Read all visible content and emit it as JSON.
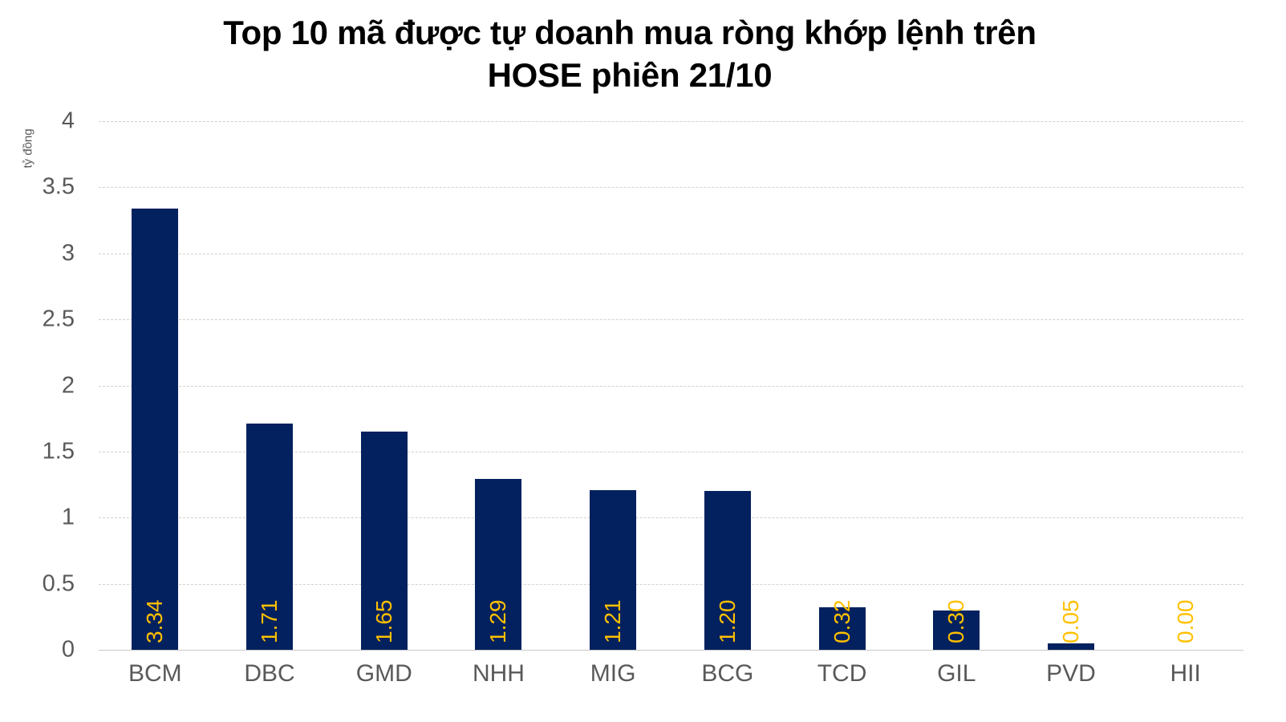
{
  "chart_data": {
    "type": "bar",
    "title": "Top 10 mã được tự doanh mua ròng khớp lệnh trên HOSE phiên 21/10",
    "title_lines": [
      "Top 10 mã được tự doanh mua ròng khớp lệnh trên",
      "HOSE phiên 21/10"
    ],
    "xlabel": "",
    "ylabel": "tỷ đồng",
    "ylim": [
      0,
      4
    ],
    "yticks": [
      "0",
      "0.5",
      "1",
      "1.5",
      "2",
      "2.5",
      "3",
      "3.5",
      "4"
    ],
    "grid": true,
    "legend": null,
    "categories": [
      "BCM",
      "DBC",
      "GMD",
      "NHH",
      "MIG",
      "BCG",
      "TCD",
      "GIL",
      "PVD",
      "HII"
    ],
    "values": [
      3.34,
      1.71,
      1.65,
      1.29,
      1.21,
      1.2,
      0.32,
      0.3,
      0.05,
      0.0
    ],
    "data_labels": [
      "3.34",
      "1.71",
      "1.65",
      "1.29",
      "1.21",
      "1.20",
      "0.32",
      "0.30",
      "0.05",
      "0.00"
    ],
    "colors": {
      "bar": "#03215e",
      "data_label": "#ffc000",
      "axis_text": "#595959",
      "grid": "#d0d0d0"
    }
  }
}
